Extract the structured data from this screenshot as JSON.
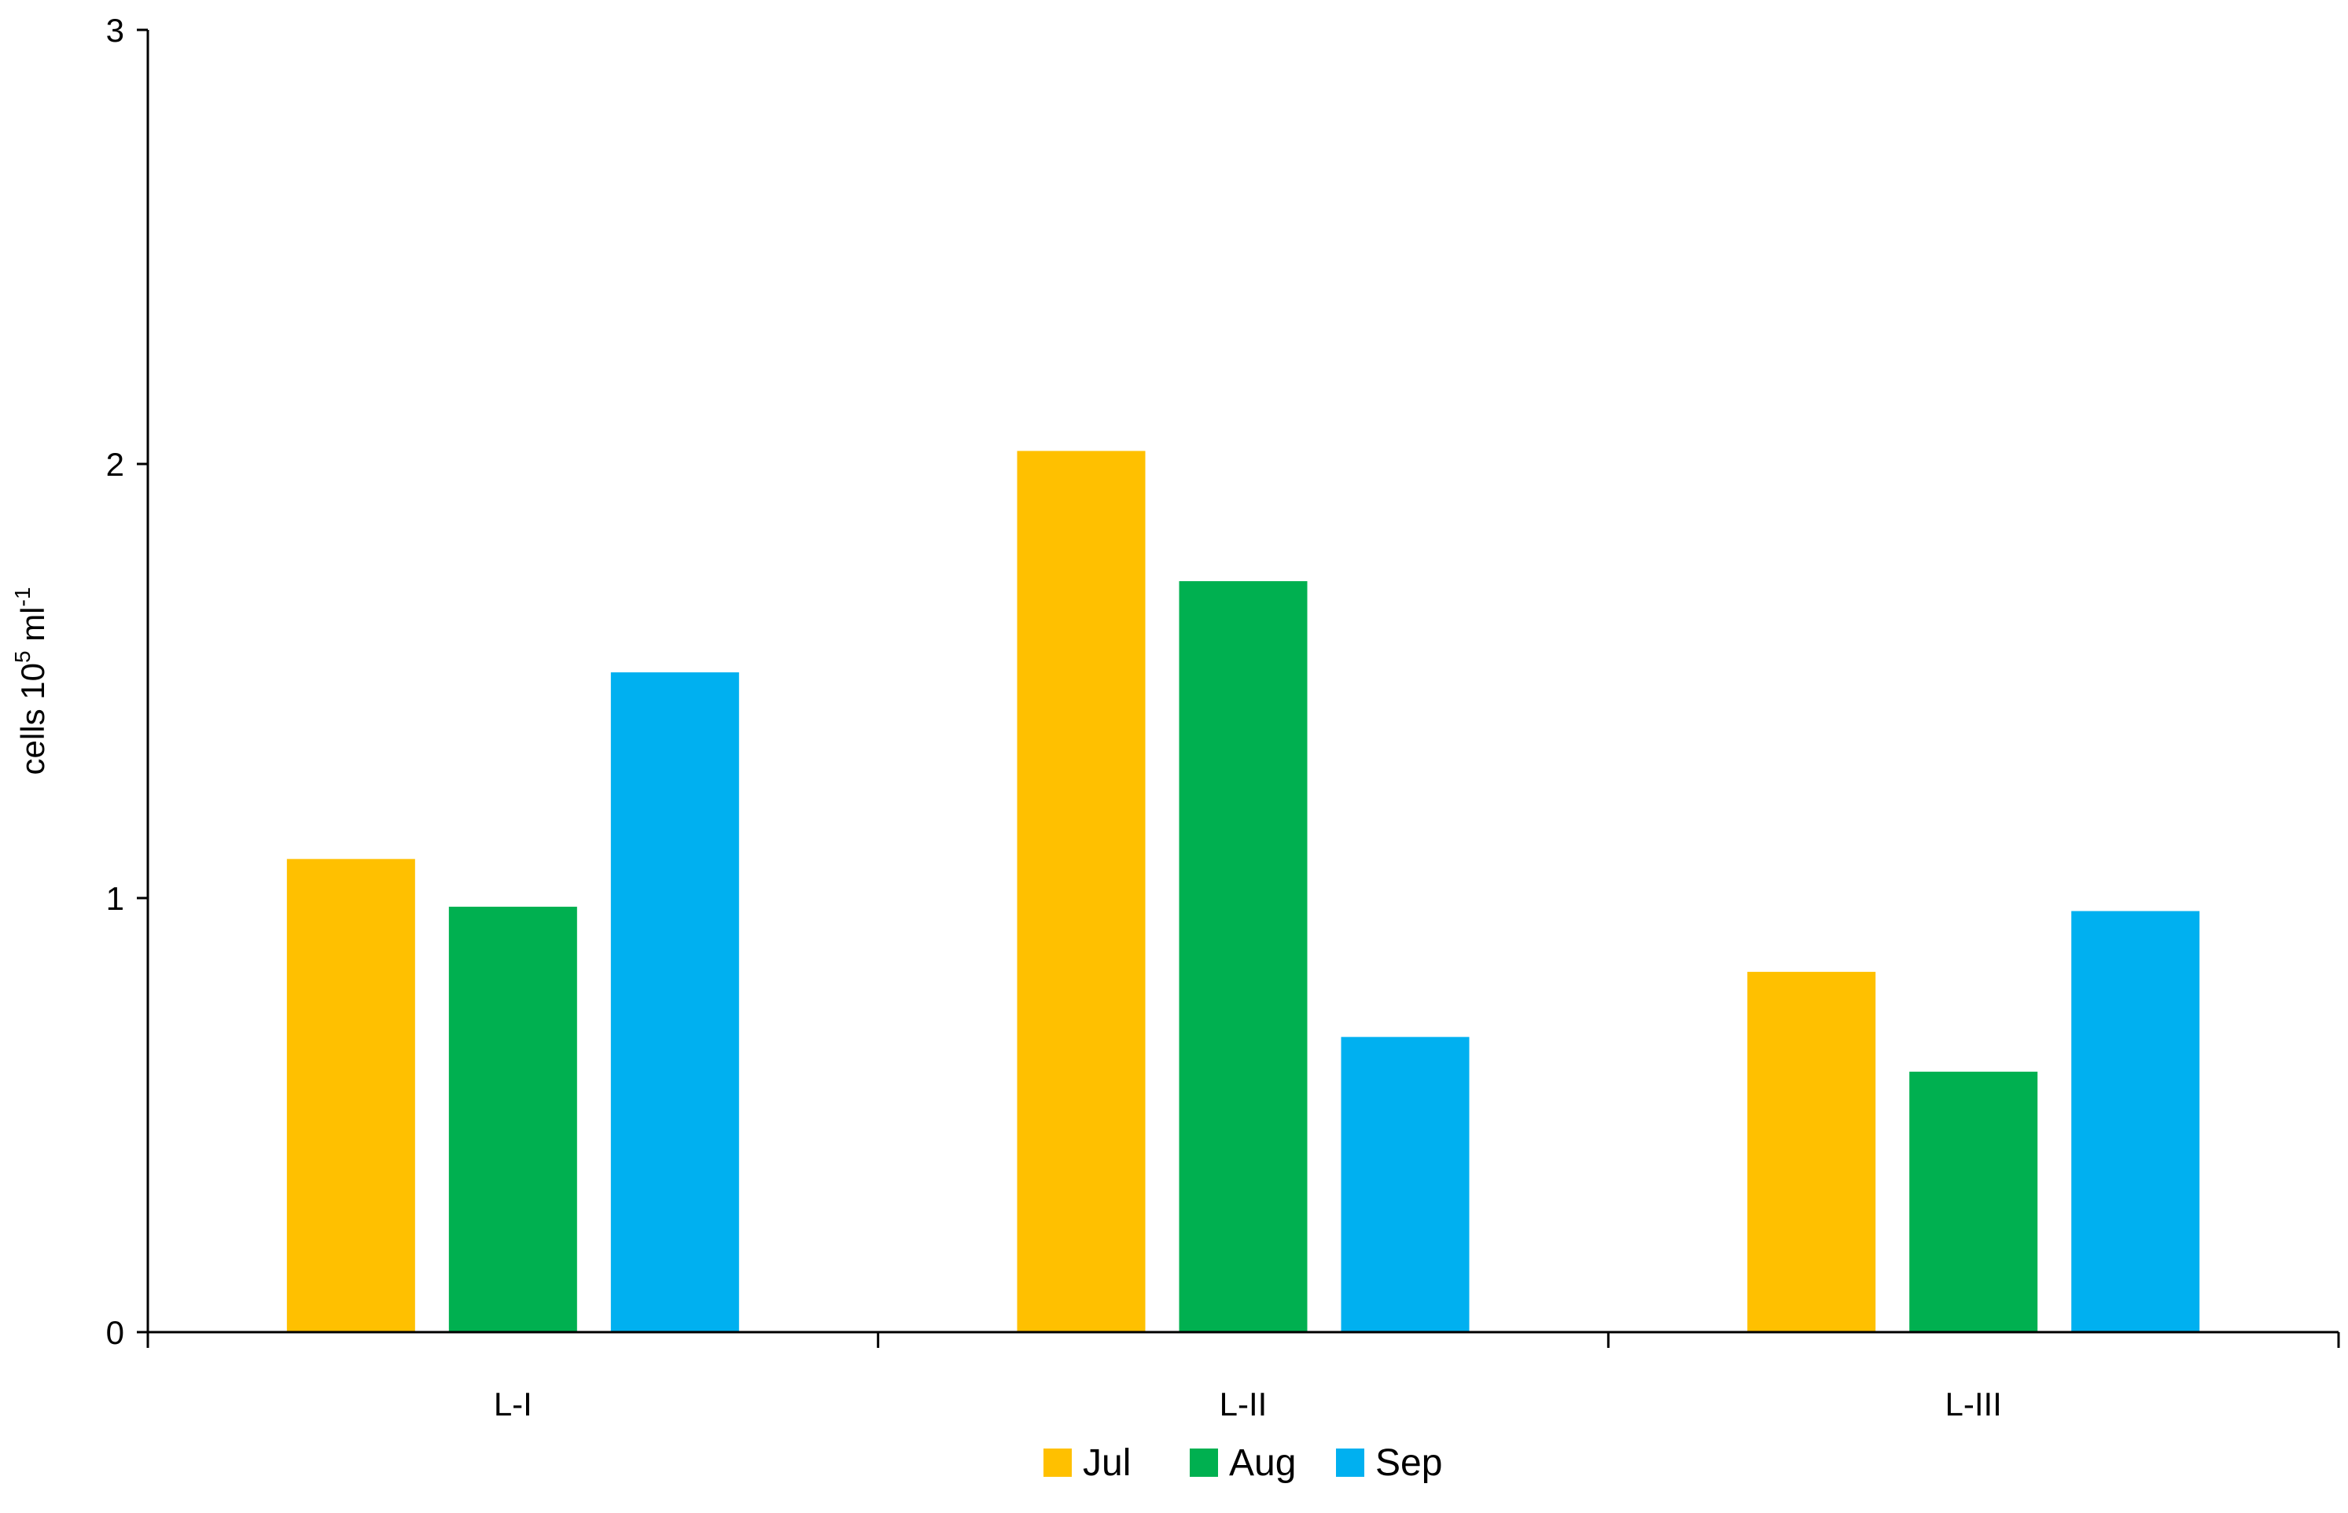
{
  "chart_data": {
    "type": "bar",
    "categories": [
      "L-I",
      "L-II",
      "L-III"
    ],
    "series": [
      {
        "name": "Jul",
        "color": "#FFC000",
        "values": [
          1.09,
          2.03,
          0.83
        ]
      },
      {
        "name": "Aug",
        "color": "#00B050",
        "values": [
          0.98,
          1.73,
          0.6
        ]
      },
      {
        "name": "Sep",
        "color": "#00B0F0",
        "values": [
          1.52,
          0.68,
          0.97
        ]
      }
    ],
    "ylabel_base": "cells 10",
    "ylabel_sup1": "5",
    "ylabel_mid": " ml",
    "ylabel_sup2": "-1",
    "yticks": [
      "0",
      "1",
      "2",
      "3"
    ],
    "ylim": [
      0,
      3
    ],
    "grid": false,
    "legend_position": "bottom"
  }
}
